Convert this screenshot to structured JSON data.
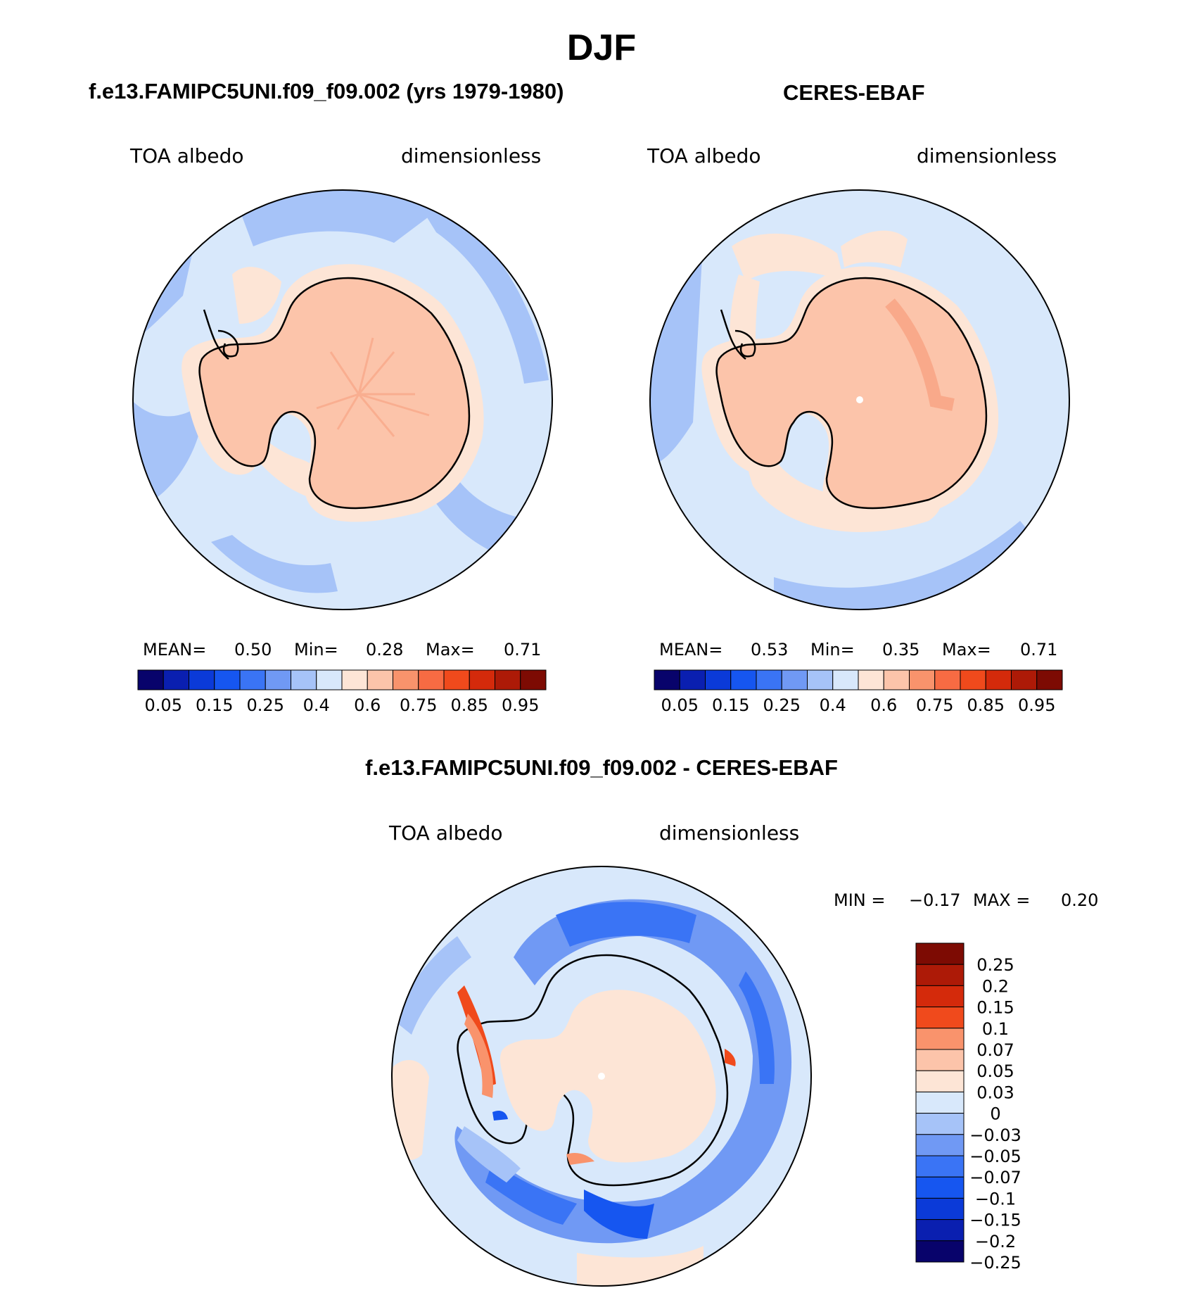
{
  "main_title": "DJF",
  "panels": {
    "model": {
      "title": "f.e13.FAMIPC5UNI.f09_f09.002 (yrs 1979-1980)",
      "variable": "TOA albedo",
      "units": "dimensionless",
      "stats": {
        "mean_label": "MEAN=",
        "mean": "0.50",
        "min_label": "Min=",
        "min": "0.28",
        "max_label": "Max=",
        "max": "0.71"
      }
    },
    "obs": {
      "title": "CERES-EBAF",
      "variable": "TOA albedo",
      "units": "dimensionless",
      "stats": {
        "mean_label": "MEAN=",
        "mean": "0.53",
        "min_label": "Min=",
        "min": "0.35",
        "max_label": "Max=",
        "max": "0.71"
      }
    },
    "diff": {
      "title": "f.e13.FAMIPC5UNI.f09_f09.002 - CERES-EBAF",
      "variable": "TOA albedo",
      "units": "dimensionless",
      "stats": {
        "min_label": "MIN =",
        "min": "−0.17",
        "max_label": "MAX =",
        "max": "0.20"
      }
    }
  },
  "colorbar_abs": {
    "colors": [
      "#08036b",
      "#0a1fb0",
      "#0b3ad8",
      "#1656f0",
      "#3a74f5",
      "#7099f4",
      "#a6c3f8",
      "#d8e8fb",
      "#fde5d6",
      "#fcc4aa",
      "#f9936c",
      "#f76b43",
      "#f04a1c",
      "#d42a0b",
      "#ad1a07",
      "#7d0b03"
    ],
    "labels": [
      "0.05",
      "0.15",
      "0.25",
      "0.4",
      "0.6",
      "0.75",
      "0.85",
      "0.95"
    ]
  },
  "colorbar_diff": {
    "colors": [
      "#7d0b03",
      "#ad1a07",
      "#d42a0b",
      "#f04a1c",
      "#f9936c",
      "#fcc4aa",
      "#fde5d6",
      "#d8e8fb",
      "#a6c3f8",
      "#7099f4",
      "#3a74f5",
      "#1656f0",
      "#0b3ad8",
      "#0a1fb0",
      "#08036b"
    ],
    "labels": [
      "0.25",
      "0.2",
      "0.15",
      "0.1",
      "0.07",
      "0.05",
      "0.03",
      "0",
      "−0.03",
      "−0.05",
      "−0.07",
      "−0.1",
      "−0.15",
      "−0.2",
      "−0.25"
    ]
  }
}
